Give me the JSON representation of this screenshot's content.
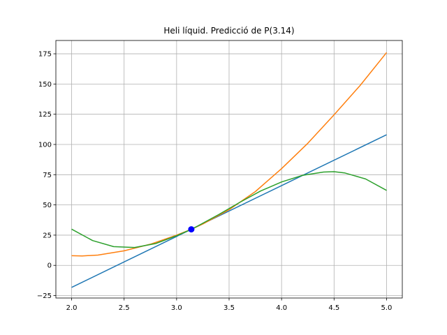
{
  "chart_data": {
    "type": "line",
    "title": "Heli líquid. Predicció de P(3.14)",
    "xlabel": "",
    "ylabel": "",
    "xlim": [
      1.85,
      5.15
    ],
    "ylim": [
      -27,
      186
    ],
    "xticks": [
      2.0,
      2.5,
      3.0,
      3.5,
      4.0,
      4.5,
      5.0
    ],
    "xtick_labels": [
      "2.0",
      "2.5",
      "3.0",
      "3.5",
      "4.0",
      "4.5",
      "5.0"
    ],
    "yticks": [
      -25,
      0,
      25,
      50,
      75,
      100,
      125,
      150,
      175
    ],
    "ytick_labels": [
      "−25",
      "0",
      "25",
      "50",
      "75",
      "100",
      "125",
      "150",
      "175"
    ],
    "grid": true,
    "legend": "none",
    "series": [
      {
        "color": "#1f77b4",
        "x": [
          2.0,
          3.0,
          3.14,
          4.0,
          5.0
        ],
        "y": [
          -18.2,
          23.9,
          29.8,
          66.0,
          108.0
        ]
      },
      {
        "color": "#ff7f0e",
        "x": [
          2.0,
          2.1,
          2.25,
          2.5,
          2.75,
          3.0,
          3.14,
          3.25,
          3.5,
          3.75,
          4.0,
          4.25,
          4.5,
          4.75,
          5.0
        ],
        "y": [
          8.0,
          7.8,
          8.5,
          12.0,
          17.5,
          25.0,
          29.8,
          34.2,
          46.0,
          61.0,
          80.0,
          101.0,
          124.5,
          149.0,
          176.0
        ]
      },
      {
        "color": "#2ca02c",
        "x": [
          2.0,
          2.2,
          2.4,
          2.6,
          2.8,
          3.0,
          3.14,
          3.2,
          3.4,
          3.6,
          3.8,
          4.0,
          4.2,
          4.4,
          4.5,
          4.6,
          4.8,
          5.0
        ],
        "y": [
          30.0,
          20.5,
          15.5,
          14.8,
          18.0,
          24.5,
          29.8,
          32.5,
          42.0,
          52.0,
          61.5,
          69.0,
          74.5,
          77.2,
          77.5,
          76.5,
          71.5,
          62.0
        ]
      }
    ],
    "points": [
      {
        "x": 3.14,
        "y": 29.8,
        "color": "#0000ff"
      }
    ]
  }
}
